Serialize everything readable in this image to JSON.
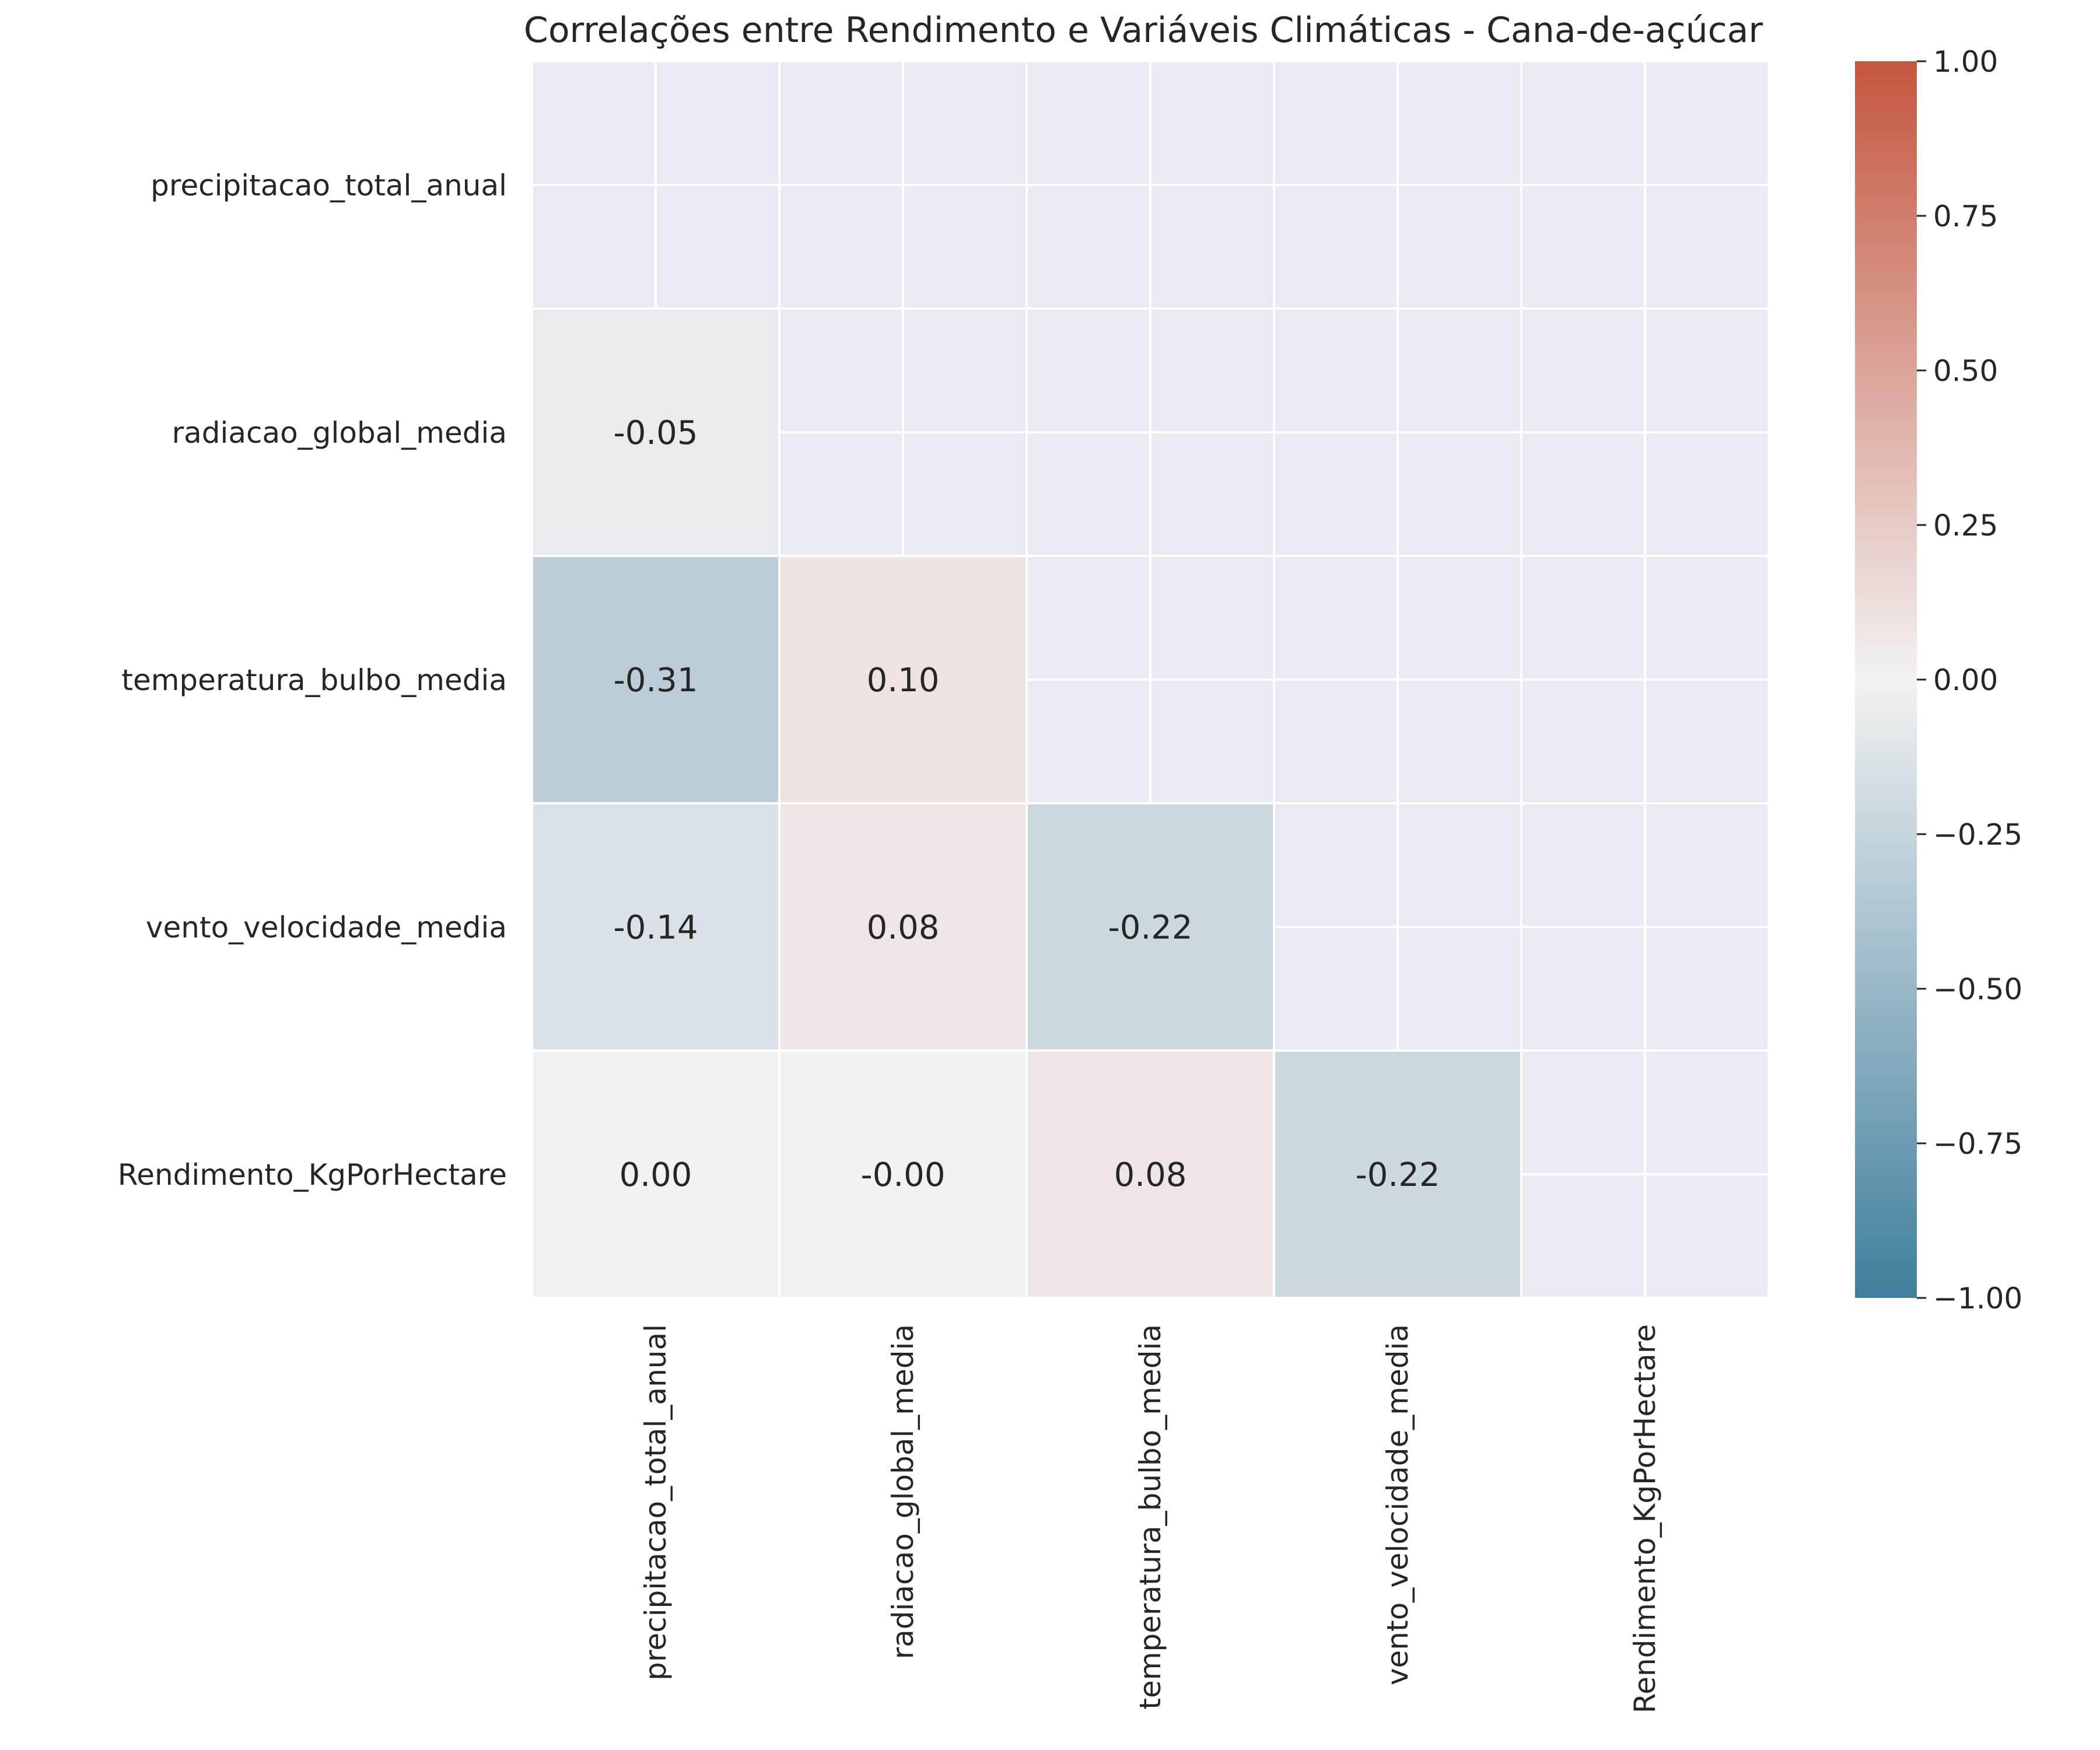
{
  "chart_data": {
    "type": "heatmap",
    "title": "Correlações entre Rendimento e Variáveis Climáticas - Cana-de-açúcar",
    "row_labels": [
      "precipitacao_total_anual",
      "radiacao_global_media",
      "temperatura_bulbo_media",
      "vento_velocidade_media",
      "Rendimento_KgPorHectare"
    ],
    "col_labels": [
      "precipitacao_total_anual",
      "radiacao_global_media",
      "temperatura_bulbo_media",
      "vento_velocidade_media",
      "Rendimento_KgPorHectare"
    ],
    "mask": "upper-triangle-including-diagonal",
    "values": [
      [
        null,
        null,
        null,
        null,
        null
      ],
      [
        -0.05,
        null,
        null,
        null,
        null
      ],
      [
        -0.31,
        0.1,
        null,
        null,
        null
      ],
      [
        -0.14,
        0.08,
        -0.22,
        null,
        null
      ],
      [
        0.0,
        -0.0,
        0.08,
        -0.22,
        null
      ]
    ],
    "value_labels": [
      [
        "",
        "",
        "",
        "",
        ""
      ],
      [
        "-0.05",
        "",
        "",
        "",
        ""
      ],
      [
        "-0.31",
        "0.10",
        "",
        "",
        ""
      ],
      [
        "-0.14",
        "0.08",
        "-0.22",
        "",
        ""
      ],
      [
        "0.00",
        "-0.00",
        "0.08",
        "-0.22",
        ""
      ]
    ],
    "colorbar": {
      "min": -1.0,
      "max": 1.0,
      "ticks": [
        1.0,
        0.75,
        0.5,
        0.25,
        0.0,
        -0.25,
        -0.5,
        -0.75,
        -1.0
      ],
      "tick_labels": [
        "1.00",
        "0.75",
        "0.50",
        "0.25",
        "0.00",
        "−0.25",
        "−0.50",
        "−0.75",
        "−1.00"
      ],
      "colors": {
        "negative": "#3f7f9c",
        "zero": "#f2f2f2",
        "positive": "#c4573e"
      }
    },
    "background": "#eaeaf2",
    "grid": true
  }
}
